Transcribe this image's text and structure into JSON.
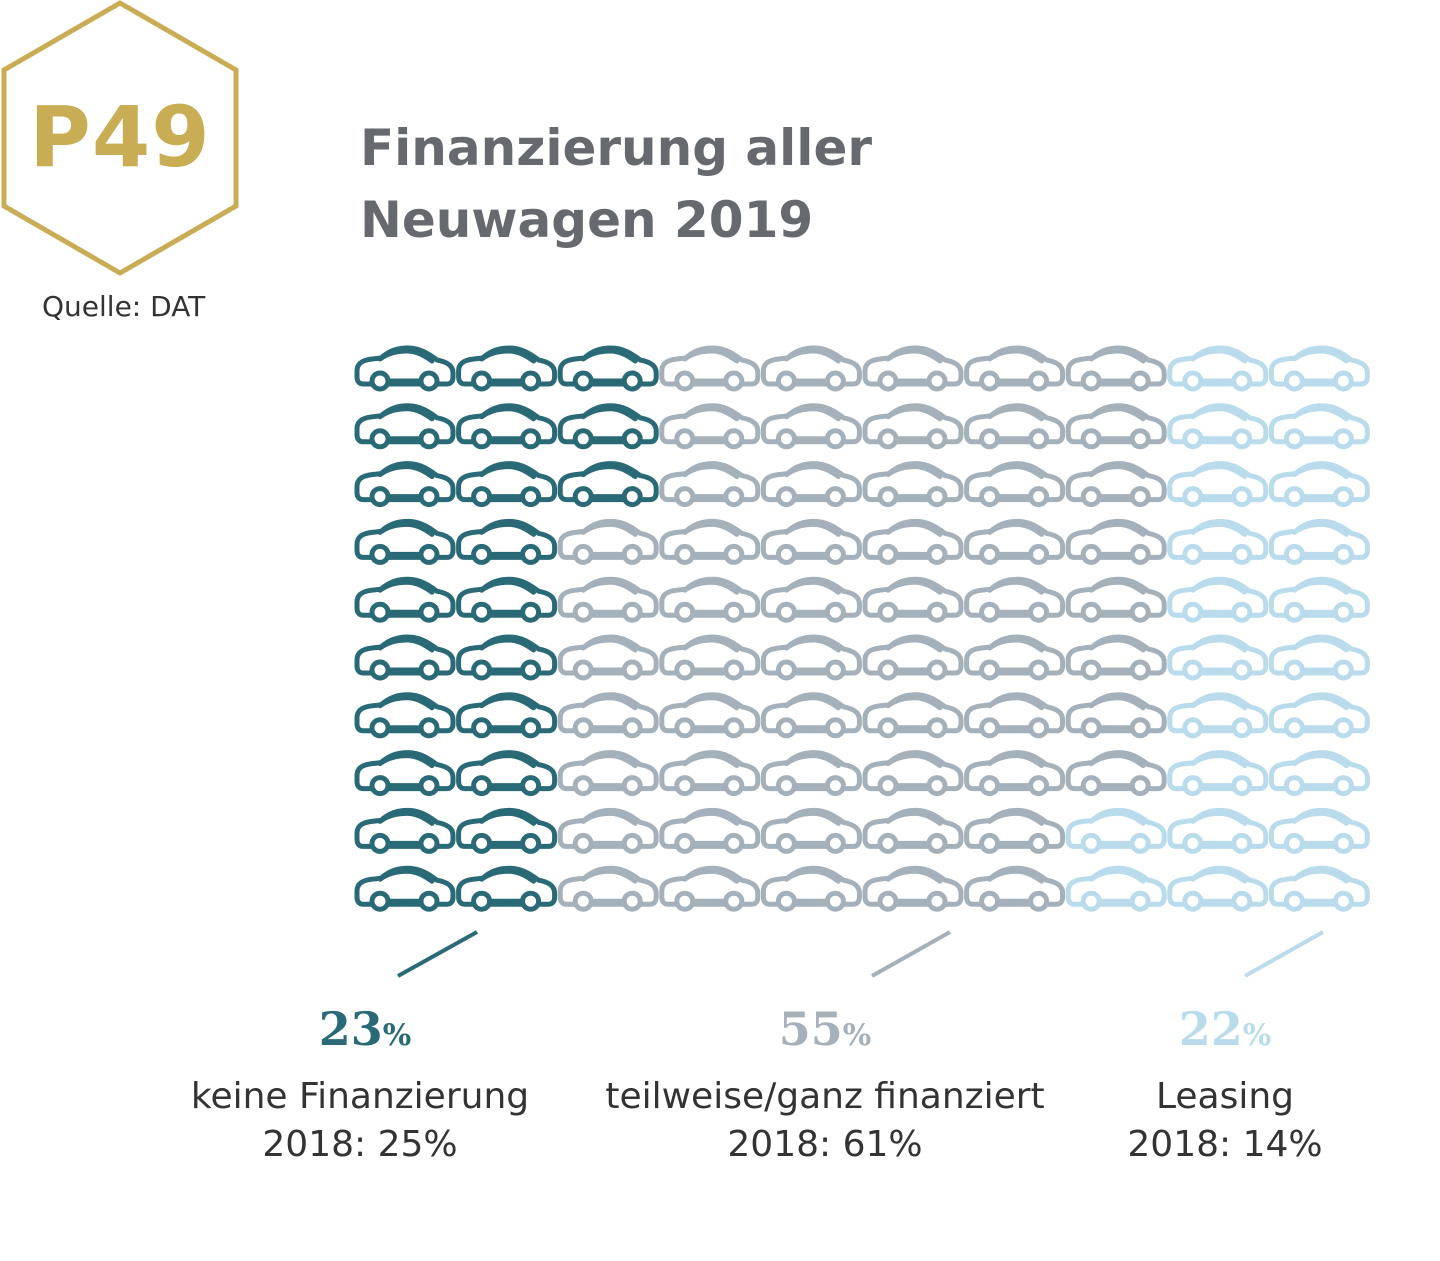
{
  "badge": {
    "text": "P49",
    "color": "#c8ad55"
  },
  "source": "Quelle: DAT",
  "title_lines": [
    "Finanzierung aller",
    "Neuwagen 2019"
  ],
  "colors": {
    "keine": "#2a6a77",
    "finanziert": "#a4b0ba",
    "leasing": "#b9dbec",
    "title": "#666a6e"
  },
  "chart_data": {
    "type": "waffle",
    "title": "Finanzierung aller Neuwagen 2019",
    "total_units": 100,
    "grid": {
      "rows": 10,
      "cols": 10,
      "fill_order": "column-major, left to right, top to bottom"
    },
    "categories": [
      {
        "key": "keine",
        "label": "keine Finanzierung",
        "value": 23,
        "display": "23",
        "unit": "%",
        "previous": "2018: 25%",
        "previous_value": 25,
        "color": "#2a6a77"
      },
      {
        "key": "finanziert",
        "label": "teilweise/ganz finanziert",
        "value": 55,
        "display": "55",
        "unit": "%",
        "previous": "2018: 61%",
        "previous_value": 61,
        "color": "#a4b0ba"
      },
      {
        "key": "leasing",
        "label": "Leasing",
        "value": 22,
        "display": "22",
        "unit": "%",
        "previous": "2018: 14%",
        "previous_value": 14,
        "color": "#b9dbec"
      }
    ]
  }
}
